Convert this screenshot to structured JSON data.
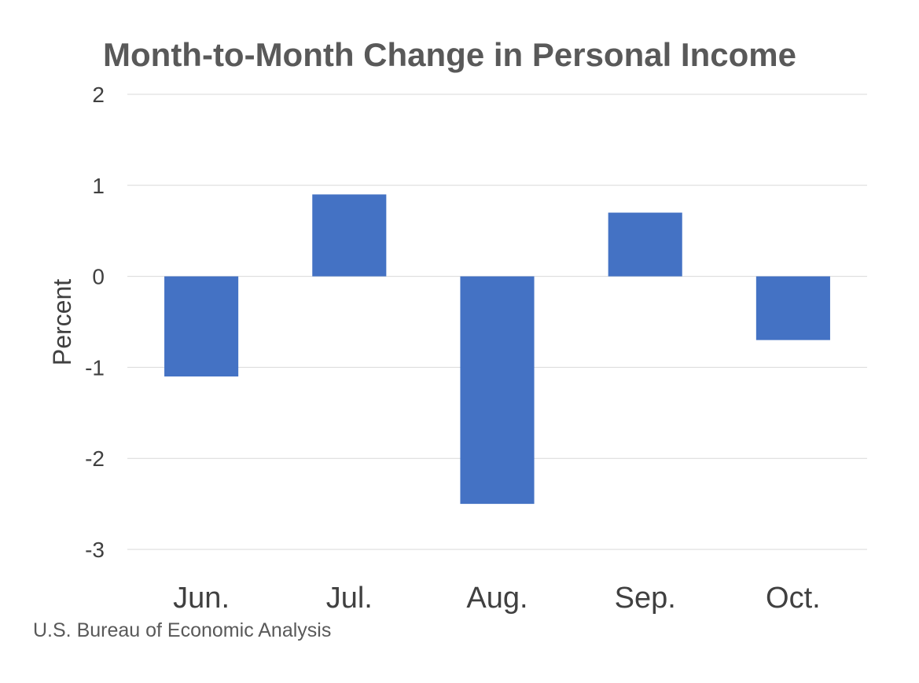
{
  "chart_data": {
    "type": "bar",
    "title": "Month-to-Month Change in Personal Income",
    "ylabel": "Percent",
    "xlabel": "",
    "categories": [
      "Jun.",
      "Jul.",
      "Aug.",
      "Sep.",
      "Oct."
    ],
    "values": [
      -1.1,
      0.9,
      -2.5,
      0.7,
      -0.7
    ],
    "ylim": [
      -3,
      2
    ],
    "yticks": [
      2,
      1,
      0,
      -1,
      -2,
      -3
    ],
    "grid": true,
    "legend": "none",
    "bar_color": "#4472C4"
  },
  "source": "U.S. Bureau of Economic Analysis"
}
